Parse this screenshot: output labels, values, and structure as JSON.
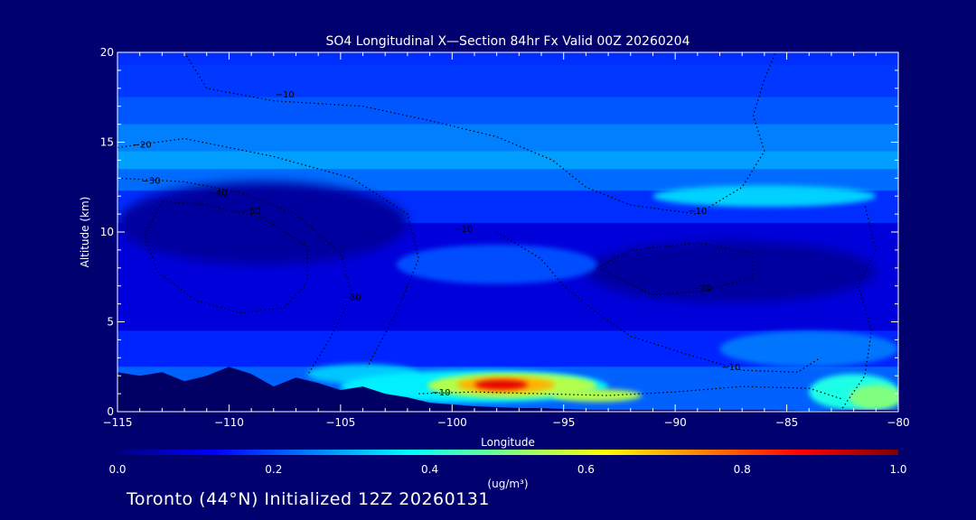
{
  "chart_data": {
    "type": "heatmap",
    "title": "SO4 Longitudinal X—Section 84hr  Fx Valid 00Z 20260204",
    "xlabel": "Longitude",
    "ylabel": "Altitude (km)",
    "xlim": [
      -115,
      -80
    ],
    "ylim": [
      0,
      20
    ],
    "x_ticks": [
      -115,
      -110,
      -105,
      -100,
      -95,
      -90,
      -85,
      -80
    ],
    "x_tick_labels": [
      "−115",
      "−110",
      "−105",
      "−100",
      "−95",
      "−90",
      "−85",
      "−80"
    ],
    "y_ticks": [
      0,
      5,
      10,
      15,
      20
    ],
    "y_tick_labels": [
      "0",
      "5",
      "10",
      "15",
      "20"
    ],
    "grid": false,
    "colorbar": {
      "min": 0.0,
      "max": 1.0,
      "ticks": [
        0.0,
        0.2,
        0.4,
        0.6,
        0.8,
        1.0
      ],
      "tick_labels": [
        "0.0",
        "0.2",
        "0.4",
        "0.6",
        "0.8",
        "1.0"
      ],
      "unit_label": "(ug/m³)",
      "colors": [
        "#00007f",
        "#0000ff",
        "#0080ff",
        "#00ffff",
        "#80ff80",
        "#ffff00",
        "#ff8000",
        "#ff0000",
        "#800000"
      ]
    },
    "background_layers": [
      {
        "y0": 0,
        "y1": 20,
        "value": 0.22
      },
      {
        "y0": 19.3,
        "y1": 20,
        "value": 0.17
      },
      {
        "y0": 17.5,
        "y1": 19.3,
        "value": 0.18
      },
      {
        "y0": 16.0,
        "y1": 17.5,
        "value": 0.21
      },
      {
        "y0": 14.5,
        "y1": 16.0,
        "value": 0.25
      },
      {
        "y0": 13.5,
        "y1": 14.5,
        "value": 0.28
      },
      {
        "y0": 12.3,
        "y1": 13.5,
        "value": 0.23
      },
      {
        "y0": 10.5,
        "y1": 12.3,
        "value": 0.17
      },
      {
        "y0": 4.5,
        "y1": 10.5,
        "value": 0.09
      },
      {
        "y0": 2.5,
        "y1": 4.5,
        "value": 0.16
      }
    ],
    "features": [
      {
        "x": -108.5,
        "y": 10.5,
        "rx": 6.5,
        "ry": 2.3,
        "value": 0.03
      },
      {
        "x": -87.5,
        "y": 7.8,
        "rx": 6.5,
        "ry": 1.7,
        "value": 0.03
      },
      {
        "x": -98,
        "y": 8.2,
        "rx": 4.5,
        "ry": 1.1,
        "value": 0.2
      },
      {
        "x": -86,
        "y": 12.0,
        "rx": 5.0,
        "ry": 0.6,
        "value": 0.33
      },
      {
        "x": -84,
        "y": 3.5,
        "rx": 4.0,
        "ry": 1.0,
        "value": 0.24
      },
      {
        "x": -82,
        "y": 1.1,
        "rx": 2.0,
        "ry": 1.0,
        "value": 0.4
      },
      {
        "x": -81,
        "y": 0.8,
        "rx": 1.2,
        "ry": 0.7,
        "value": 0.5
      },
      {
        "x": -104,
        "y": 2.1,
        "rx": 2.5,
        "ry": 0.55,
        "value": 0.32
      },
      {
        "x": -99,
        "y": 1.4,
        "rx": 6.0,
        "ry": 0.9,
        "value": 0.36
      },
      {
        "x": -97.3,
        "y": 1.45,
        "rx": 3.8,
        "ry": 0.7,
        "value": 0.55
      },
      {
        "x": -97.6,
        "y": 1.5,
        "rx": 2.2,
        "ry": 0.45,
        "value": 0.7
      },
      {
        "x": -97.8,
        "y": 1.5,
        "rx": 1.2,
        "ry": 0.28,
        "value": 0.9
      },
      {
        "x": -93.5,
        "y": 0.9,
        "rx": 2.0,
        "ry": 0.35,
        "value": 0.55
      }
    ],
    "terrain": [
      [
        -115,
        2.2
      ],
      [
        -114,
        2.0
      ],
      [
        -113,
        2.2
      ],
      [
        -112,
        1.7
      ],
      [
        -111,
        2.0
      ],
      [
        -110,
        2.5
      ],
      [
        -109,
        2.1
      ],
      [
        -108,
        1.4
      ],
      [
        -107,
        1.9
      ],
      [
        -106,
        1.6
      ],
      [
        -105,
        1.2
      ],
      [
        -104,
        1.4
      ],
      [
        -103,
        1.0
      ],
      [
        -102,
        0.8
      ],
      [
        -101,
        0.5
      ],
      [
        -100,
        0.4
      ],
      [
        -99,
        0.3
      ],
      [
        -98,
        0.25
      ],
      [
        -97,
        0.2
      ],
      [
        -96,
        0.2
      ],
      [
        -95,
        0.15
      ],
      [
        -94,
        0.1
      ],
      [
        -93,
        0.1
      ],
      [
        -92,
        0.1
      ],
      [
        -90,
        0.1
      ],
      [
        -88,
        0.1
      ],
      [
        -86,
        0.1
      ],
      [
        -84,
        0.05
      ],
      [
        -82,
        0.1
      ],
      [
        -80,
        0.1
      ]
    ],
    "terrain_color": "#000064",
    "contour_labels": [
      {
        "x": -109,
        "y": 11.0,
        "text": "−50"
      },
      {
        "x": -110.5,
        "y": 12.0,
        "text": "−40"
      },
      {
        "x": -113.5,
        "y": 12.7,
        "text": "−30"
      },
      {
        "x": -113.9,
        "y": 14.7,
        "text": "−20"
      },
      {
        "x": -107.5,
        "y": 17.5,
        "text": "−10"
      },
      {
        "x": -99.5,
        "y": 10.0,
        "text": "−10"
      },
      {
        "x": -104.5,
        "y": 6.2,
        "text": "−30"
      },
      {
        "x": -89.0,
        "y": 11.0,
        "text": "−10"
      },
      {
        "x": -88.8,
        "y": 6.7,
        "text": "−20"
      },
      {
        "x": -100.5,
        "y": 0.9,
        "text": "−10"
      },
      {
        "x": -87.5,
        "y": 2.3,
        "text": "−10"
      }
    ],
    "contours": [
      [
        [
          -112,
          20
        ],
        [
          -111,
          18.0
        ],
        [
          -108,
          17.3
        ],
        [
          -104,
          17.0
        ],
        [
          -101,
          16.2
        ],
        [
          -98,
          15.3
        ],
        [
          -95.5,
          14.0
        ],
        [
          -94,
          12.5
        ],
        [
          -92,
          11.5
        ],
        [
          -89,
          11.0
        ],
        [
          -87,
          12.5
        ],
        [
          -86,
          14.5
        ],
        [
          -86.5,
          16.5
        ],
        [
          -86,
          18.5
        ],
        [
          -85.5,
          20
        ]
      ],
      [
        [
          -115,
          14.7
        ],
        [
          -112,
          15.2
        ],
        [
          -108,
          14.2
        ],
        [
          -104.5,
          13.0
        ],
        [
          -102,
          11.0
        ],
        [
          -101.5,
          8.5
        ],
        [
          -102.5,
          5.5
        ],
        [
          -103.8,
          2.5
        ]
      ],
      [
        [
          -115,
          13.0
        ],
        [
          -112,
          12.8
        ],
        [
          -109.5,
          12.2
        ],
        [
          -107,
          11.0
        ],
        [
          -105,
          8.8
        ],
        [
          -104.5,
          6.5
        ],
        [
          -105.5,
          4.0
        ],
        [
          -106.5,
          2.0
        ]
      ],
      [
        [
          -113,
          11.7
        ],
        [
          -111,
          11.5
        ],
        [
          -108.5,
          10.8
        ],
        [
          -106.5,
          9.2
        ],
        [
          -106.5,
          7.2
        ],
        [
          -107.5,
          5.8
        ],
        [
          -109.5,
          5.5
        ],
        [
          -111.5,
          6.2
        ],
        [
          -113.2,
          7.8
        ],
        [
          -113.8,
          9.8
        ],
        [
          -113,
          11.7
        ]
      ],
      [
        [
          -98,
          10.0
        ],
        [
          -96,
          8.5
        ],
        [
          -95,
          7.0
        ],
        [
          -93.5,
          5.5
        ],
        [
          -92.0,
          4.2
        ],
        [
          -89.5,
          3.2
        ],
        [
          -87,
          2.3
        ],
        [
          -84.5,
          2.2
        ],
        [
          -83.5,
          3.0
        ]
      ],
      [
        [
          -93.5,
          8.0
        ],
        [
          -91,
          6.5
        ],
        [
          -88.8,
          6.7
        ],
        [
          -86.5,
          7.5
        ],
        [
          -86.5,
          8.8
        ],
        [
          -89,
          9.4
        ],
        [
          -92,
          9.0
        ],
        [
          -93.5,
          8.0
        ]
      ],
      [
        [
          -101.5,
          1.0
        ],
        [
          -99,
          1.1
        ],
        [
          -96,
          1.0
        ],
        [
          -93,
          0.9
        ],
        [
          -90,
          1.1
        ],
        [
          -87,
          1.4
        ],
        [
          -84,
          1.3
        ],
        [
          -82.5,
          0.7
        ]
      ],
      [
        [
          -82.5,
          0.2
        ],
        [
          -81.5,
          2.0
        ],
        [
          -81.2,
          4.5
        ],
        [
          -81.8,
          7.0
        ],
        [
          -81.0,
          9.0
        ],
        [
          -81.5,
          11.5
        ]
      ]
    ]
  },
  "footer": "Toronto (44°N) Initialized 12Z 20260131"
}
